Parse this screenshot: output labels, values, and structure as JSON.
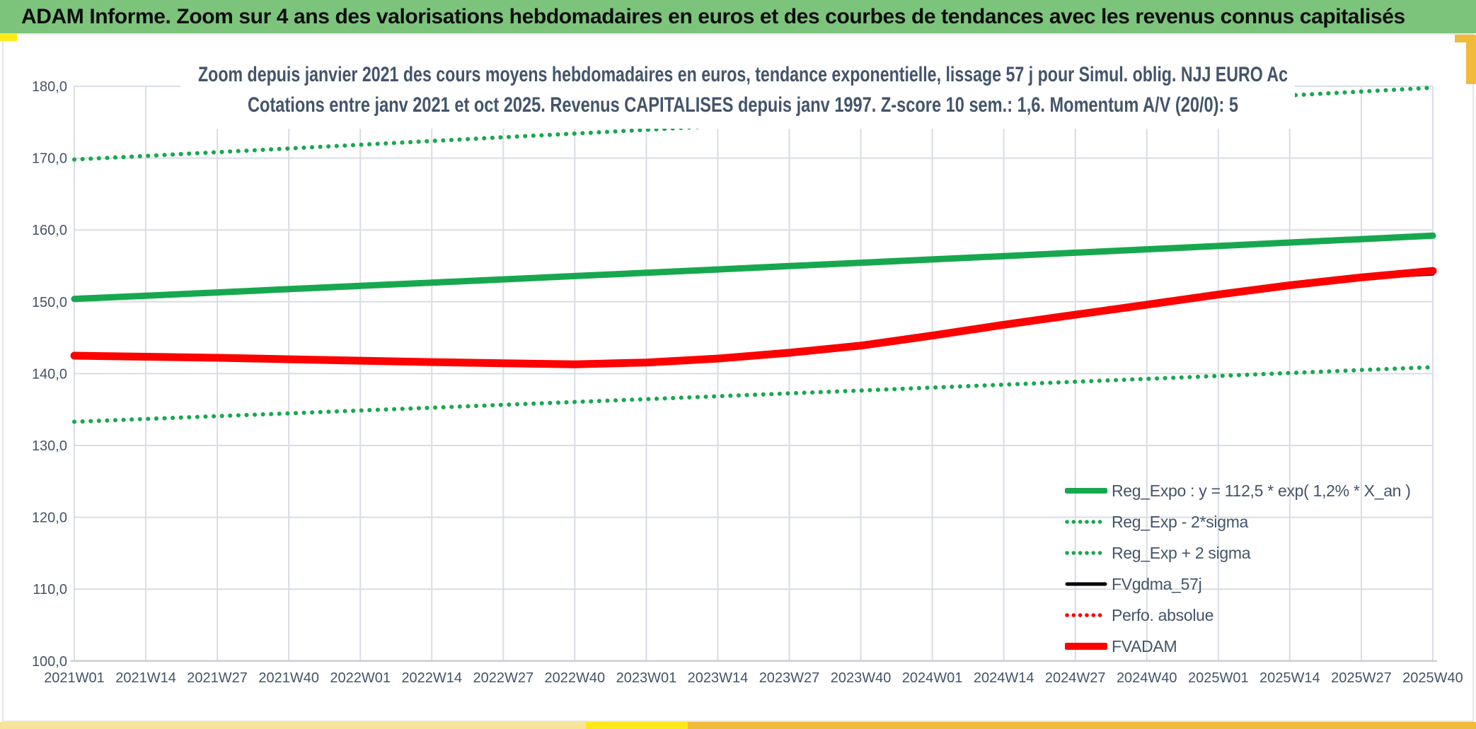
{
  "header": {
    "title": "ADAM Informe. Zoom sur 4 ans des valorisations hebdomadaires en euros et des courbes de tendances avec les revenus connus capitalisés"
  },
  "colors": {
    "header_bg": "#7CC47C",
    "text": "#44546A",
    "grid": "#D9DDE4",
    "axis": "#C3C8D0",
    "green": "#17A84F",
    "red": "#FE0000",
    "black": "#000000",
    "gold": "#F2BA3A",
    "gold_bright": "#FFE81A",
    "gold_pale": "#F7E49B"
  },
  "chart_data": {
    "type": "line",
    "title_line1": "Zoom depuis janvier 2021 des cours moyens hebdomadaires en euros, tendance exponentielle, lissage 57 j pour Simul. oblig. NJJ EURO Ac",
    "title_line2": "Cotations entre janv 2021 et oct 2025. Revenus CAPITALISES depuis janv 1997. Z-score 10 sem.: 1,6. Momentum A/V (20/0): 5",
    "categories": [
      "2021W01",
      "2021W14",
      "2021W27",
      "2021W40",
      "2022W01",
      "2022W14",
      "2022W27",
      "2022W40",
      "2023W01",
      "2023W14",
      "2023W27",
      "2023W40",
      "2024W01",
      "2024W14",
      "2024W27",
      "2024W40",
      "2025W01",
      "2025W14",
      "2025W27",
      "2025W40"
    ],
    "y_tick_values": [
      100,
      110,
      120,
      130,
      140,
      150,
      160,
      170,
      180
    ],
    "y_tick_labels": [
      "100,0",
      "110,0",
      "120,0",
      "130,0",
      "140,0",
      "150,0",
      "160,0",
      "170,0",
      "180,0"
    ],
    "ylim": [
      100,
      180
    ],
    "grid": true,
    "legend_position": "bottom-right",
    "series": [
      {
        "name": "Reg_Expo : y = 112,5 * exp( 1,2% *  X_an )",
        "color": "#17A84F",
        "style": "solid",
        "width": 9,
        "layer": 3,
        "values": [
          150.4,
          150.85,
          151.3,
          151.76,
          152.21,
          152.67,
          153.12,
          153.58,
          154.04,
          154.5,
          154.97,
          155.43,
          155.9,
          156.36,
          156.83,
          157.3,
          157.77,
          158.25,
          158.72,
          159.2
        ]
      },
      {
        "name": "Reg_Exp - 2*sigma",
        "color": "#17A84F",
        "style": "dotted",
        "width": 6,
        "layer": 2,
        "values": [
          133.3,
          133.69,
          134.08,
          134.47,
          134.87,
          135.26,
          135.66,
          136.05,
          136.45,
          136.85,
          137.25,
          137.65,
          138.06,
          138.46,
          138.87,
          139.27,
          139.68,
          140.09,
          140.5,
          140.9
        ]
      },
      {
        "name": "Reg_Exp + 2 sigma",
        "color": "#17A84F",
        "style": "dotted",
        "width": 6,
        "layer": 1,
        "values": [
          169.8,
          170.31,
          170.83,
          171.34,
          171.86,
          172.38,
          172.9,
          173.42,
          173.94,
          174.47,
          175.0,
          175.52,
          176.05,
          176.59,
          177.12,
          177.65,
          178.19,
          178.73,
          179.26,
          179.8
        ]
      },
      {
        "name": "FVgdma_57j",
        "color": "#000000",
        "style": "solid",
        "width": 5,
        "layer": 5,
        "values": [
          142.45,
          142.3,
          142.15,
          141.95,
          141.75,
          141.55,
          141.4,
          141.3,
          141.5,
          142.0,
          142.8,
          143.8,
          145.2,
          146.7,
          148.1,
          149.5,
          150.9,
          152.2,
          153.3,
          153.9
        ]
      },
      {
        "name": "Perfo. absolue",
        "color": "#FE0000",
        "style": "dotted",
        "width": 5,
        "layer": 4,
        "values": [
          142.5,
          142.35,
          142.2,
          142.0,
          141.8,
          141.6,
          141.45,
          141.3,
          141.55,
          142.1,
          142.9,
          143.9,
          145.3,
          146.8,
          148.2,
          149.6,
          151.0,
          152.3,
          153.4,
          154.3
        ]
      },
      {
        "name": "FVADAM",
        "color": "#FE0000",
        "style": "solid",
        "width": 11,
        "layer": 6,
        "values": [
          142.5,
          142.35,
          142.2,
          142.0,
          141.8,
          141.6,
          141.45,
          141.3,
          141.55,
          142.1,
          142.9,
          143.9,
          145.3,
          146.8,
          148.2,
          149.6,
          151.0,
          152.3,
          153.4,
          154.3
        ]
      }
    ]
  }
}
